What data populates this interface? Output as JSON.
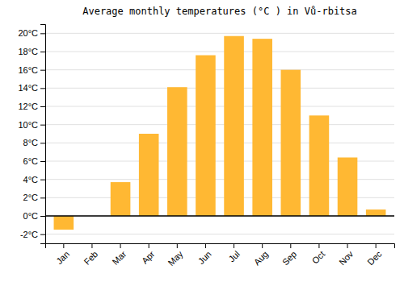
{
  "chart_data": {
    "type": "bar",
    "title": "Average monthly temperatures (°C ) in Vů-rbitsa",
    "categories": [
      "Jan",
      "Feb",
      "Mar",
      "Apr",
      "May",
      "Jun",
      "Jul",
      "Aug",
      "Sep",
      "Oct",
      "Nov",
      "Dec"
    ],
    "values": [
      -1.5,
      0.0,
      3.7,
      9.0,
      14.1,
      17.6,
      19.7,
      19.4,
      16.0,
      11.0,
      6.4,
      0.7
    ],
    "color": "#FFB833",
    "ylim": [
      -3,
      21
    ],
    "yticks": [
      {
        "value": -2,
        "label": "-2°C"
      },
      {
        "value": 0,
        "label": "0°C"
      },
      {
        "value": 2,
        "label": "2°C"
      },
      {
        "value": 4,
        "label": "4°C"
      },
      {
        "value": 6,
        "label": "6°C"
      },
      {
        "value": 8,
        "label": "8°C"
      },
      {
        "value": 10,
        "label": "10°C"
      },
      {
        "value": 12,
        "label": "12°C"
      },
      {
        "value": 14,
        "label": "14°C"
      },
      {
        "value": 16,
        "label": "16°C"
      },
      {
        "value": 18,
        "label": "18°C"
      },
      {
        "value": 20,
        "label": "20°C"
      }
    ],
    "grid": true
  }
}
